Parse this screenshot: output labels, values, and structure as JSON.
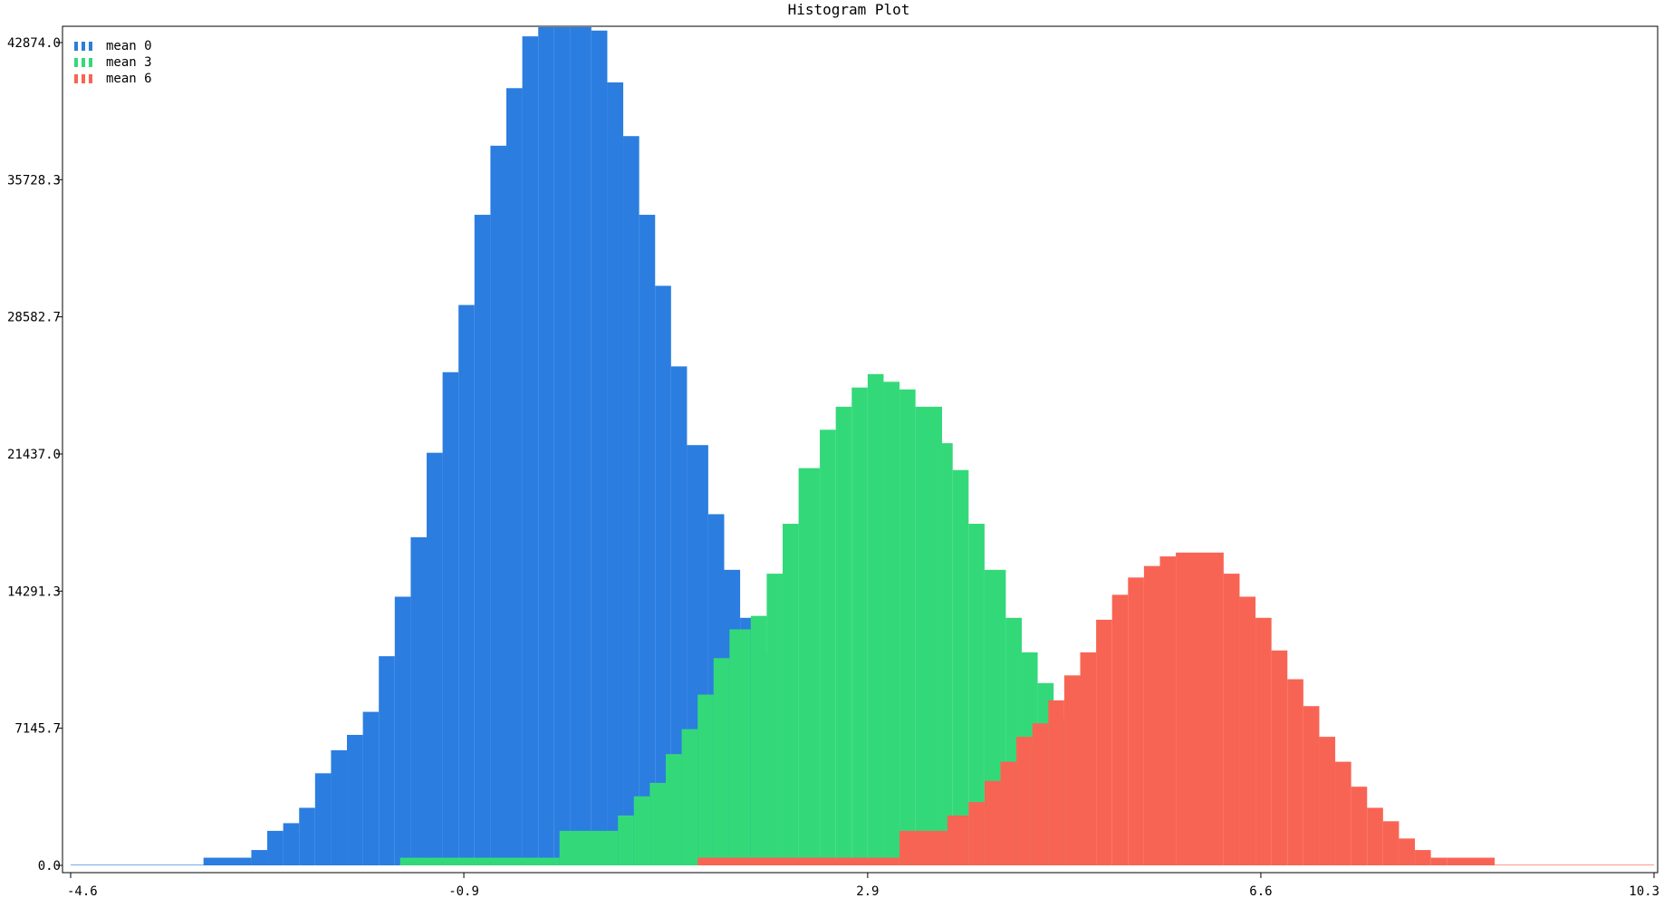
{
  "chart_data": {
    "type": "histogram",
    "title": "Histogram Plot",
    "xlabel": "",
    "ylabel": "",
    "xlim": [
      -4.6,
      10.3
    ],
    "ylim": [
      0,
      42874.0
    ],
    "x_ticks": [
      "-4.6",
      "-0.9",
      "2.9",
      "6.6",
      "10.3"
    ],
    "y_ticks": [
      "0.0",
      "7145.7",
      "14291.3",
      "21437.0",
      "28582.7",
      "35728.3",
      "42874.0"
    ],
    "grid": false,
    "legend_position": "top-left",
    "series": [
      {
        "name": "mean 0",
        "color": "#2b7de0",
        "bins": [
          [
            -4.6,
            -3.35,
            30
          ],
          [
            -3.35,
            -2.9,
            400
          ],
          [
            -2.9,
            -2.75,
            800
          ],
          [
            -2.75,
            -2.6,
            1800
          ],
          [
            -2.6,
            -2.45,
            2200
          ],
          [
            -2.45,
            -2.3,
            3000
          ],
          [
            -2.3,
            -2.15,
            4800
          ],
          [
            -2.15,
            -2.0,
            6000
          ],
          [
            -2.0,
            -1.85,
            6800
          ],
          [
            -1.85,
            -1.7,
            8000
          ],
          [
            -1.7,
            -1.55,
            10900
          ],
          [
            -1.55,
            -1.4,
            14000
          ],
          [
            -1.4,
            -1.25,
            17100
          ],
          [
            -1.25,
            -1.1,
            21500
          ],
          [
            -1.1,
            -0.95,
            25700
          ],
          [
            -0.95,
            -0.8,
            29200
          ],
          [
            -0.8,
            -0.65,
            33900
          ],
          [
            -0.65,
            -0.5,
            37500
          ],
          [
            -0.5,
            -0.35,
            40500
          ],
          [
            -0.35,
            -0.2,
            43200
          ],
          [
            -0.2,
            -0.05,
            45100
          ],
          [
            -0.05,
            0.1,
            45700
          ],
          [
            0.1,
            0.3,
            46100
          ],
          [
            0.3,
            0.45,
            43500
          ],
          [
            0.45,
            0.6,
            40800
          ],
          [
            0.6,
            0.75,
            38000
          ],
          [
            0.75,
            0.9,
            33900
          ],
          [
            0.9,
            1.05,
            30200
          ],
          [
            1.05,
            1.2,
            26000
          ],
          [
            1.2,
            1.4,
            21900
          ],
          [
            1.4,
            1.55,
            18300
          ],
          [
            1.55,
            1.7,
            15400
          ],
          [
            1.7,
            1.85,
            12900
          ],
          [
            1.85,
            1.95,
            11000
          ]
        ]
      },
      {
        "name": "mean 3",
        "color": "#33d979",
        "bins": [
          [
            -1.5,
            0.0,
            400
          ],
          [
            0.0,
            0.55,
            1800
          ],
          [
            0.55,
            0.7,
            2600
          ],
          [
            0.7,
            0.85,
            3600
          ],
          [
            0.85,
            1.0,
            4300
          ],
          [
            1.0,
            1.15,
            5800
          ],
          [
            1.15,
            1.3,
            7100
          ],
          [
            1.3,
            1.45,
            8900
          ],
          [
            1.45,
            1.6,
            10800
          ],
          [
            1.6,
            1.8,
            12300
          ],
          [
            1.8,
            1.95,
            13000
          ],
          [
            1.95,
            2.1,
            15200
          ],
          [
            2.1,
            2.25,
            17800
          ],
          [
            2.25,
            2.45,
            20700
          ],
          [
            2.45,
            2.6,
            22700
          ],
          [
            2.6,
            2.75,
            23900
          ],
          [
            2.75,
            2.9,
            24900
          ],
          [
            2.9,
            3.05,
            25600
          ],
          [
            3.05,
            3.2,
            25200
          ],
          [
            3.2,
            3.35,
            24800
          ],
          [
            3.35,
            3.6,
            23900
          ],
          [
            3.6,
            3.7,
            22000
          ],
          [
            3.7,
            3.85,
            20600
          ],
          [
            3.85,
            4.0,
            17800
          ],
          [
            4.0,
            4.2,
            15400
          ],
          [
            4.2,
            4.35,
            12900
          ],
          [
            4.35,
            4.5,
            11100
          ],
          [
            4.5,
            4.65,
            9500
          ],
          [
            4.65,
            4.8,
            7700
          ],
          [
            4.8,
            4.9,
            6800
          ]
        ]
      },
      {
        "name": "mean 6",
        "color": "#f86454",
        "bins": [
          [
            1.3,
            3.2,
            400
          ],
          [
            3.2,
            3.65,
            1800
          ],
          [
            3.65,
            3.85,
            2600
          ],
          [
            3.85,
            4.0,
            3300
          ],
          [
            4.0,
            4.15,
            4400
          ],
          [
            4.15,
            4.3,
            5400
          ],
          [
            4.3,
            4.45,
            6700
          ],
          [
            4.45,
            4.6,
            7400
          ],
          [
            4.6,
            4.75,
            8600
          ],
          [
            4.75,
            4.9,
            9900
          ],
          [
            4.9,
            5.05,
            11100
          ],
          [
            5.05,
            5.2,
            12800
          ],
          [
            5.2,
            5.35,
            14100
          ],
          [
            5.35,
            5.5,
            15000
          ],
          [
            5.5,
            5.65,
            15600
          ],
          [
            5.65,
            5.8,
            16100
          ],
          [
            5.8,
            6.25,
            16300
          ],
          [
            6.25,
            6.4,
            15200
          ],
          [
            6.4,
            6.55,
            14000
          ],
          [
            6.55,
            6.7,
            12900
          ],
          [
            6.7,
            6.85,
            11200
          ],
          [
            6.85,
            7.0,
            9700
          ],
          [
            7.0,
            7.15,
            8300
          ],
          [
            7.15,
            7.3,
            6700
          ],
          [
            7.3,
            7.45,
            5400
          ],
          [
            7.45,
            7.6,
            4100
          ],
          [
            7.6,
            7.75,
            3000
          ],
          [
            7.75,
            7.9,
            2300
          ],
          [
            7.9,
            8.05,
            1400
          ],
          [
            8.05,
            8.2,
            800
          ],
          [
            8.2,
            8.35,
            400
          ],
          [
            8.35,
            8.8,
            400
          ],
          [
            8.8,
            10.3,
            30
          ]
        ]
      }
    ]
  }
}
